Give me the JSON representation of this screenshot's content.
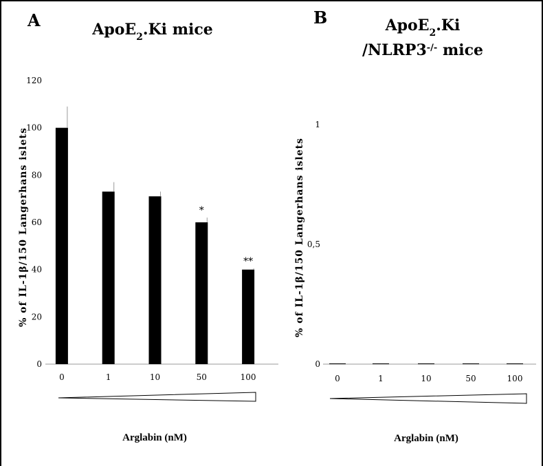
{
  "chart_data": [
    {
      "type": "bar",
      "panel_letter": "A",
      "title_lines": [
        {
          "text": "ApoE",
          "sub": "2",
          "rest": ".Ki mice"
        }
      ],
      "ylabel": "% of IL-1β/150 Langerhans islets",
      "xlabel": "Arglabin (nM)",
      "categories": [
        "0",
        "1",
        "10",
        "50",
        "100"
      ],
      "values": [
        100,
        73,
        71,
        60,
        40
      ],
      "errors": [
        9,
        4,
        2,
        2,
        0.5
      ],
      "significance": [
        "",
        "",
        "",
        "*",
        "**"
      ],
      "ylim": [
        0,
        120
      ],
      "yticks": [
        "0",
        "20",
        "40",
        "60",
        "80",
        "100",
        "120"
      ],
      "bar_color": "#000000"
    },
    {
      "type": "bar",
      "panel_letter": "B",
      "title_lines": [
        {
          "text": "ApoE",
          "sub": "2",
          "rest": ".Ki"
        },
        {
          "text": "/NLRP3",
          "sup": "-/-",
          "rest": " mice"
        }
      ],
      "ylabel": "% of IL-1β/150 Langerhans islets",
      "xlabel": "Arglabin (nM)",
      "categories": [
        "0",
        "1",
        "10",
        "50",
        "100"
      ],
      "values": [
        0,
        0,
        0,
        0,
        0
      ],
      "ylim": [
        0,
        1
      ],
      "yticks": [
        "0",
        "0,5",
        "1"
      ],
      "bar_color": "#000000"
    }
  ]
}
